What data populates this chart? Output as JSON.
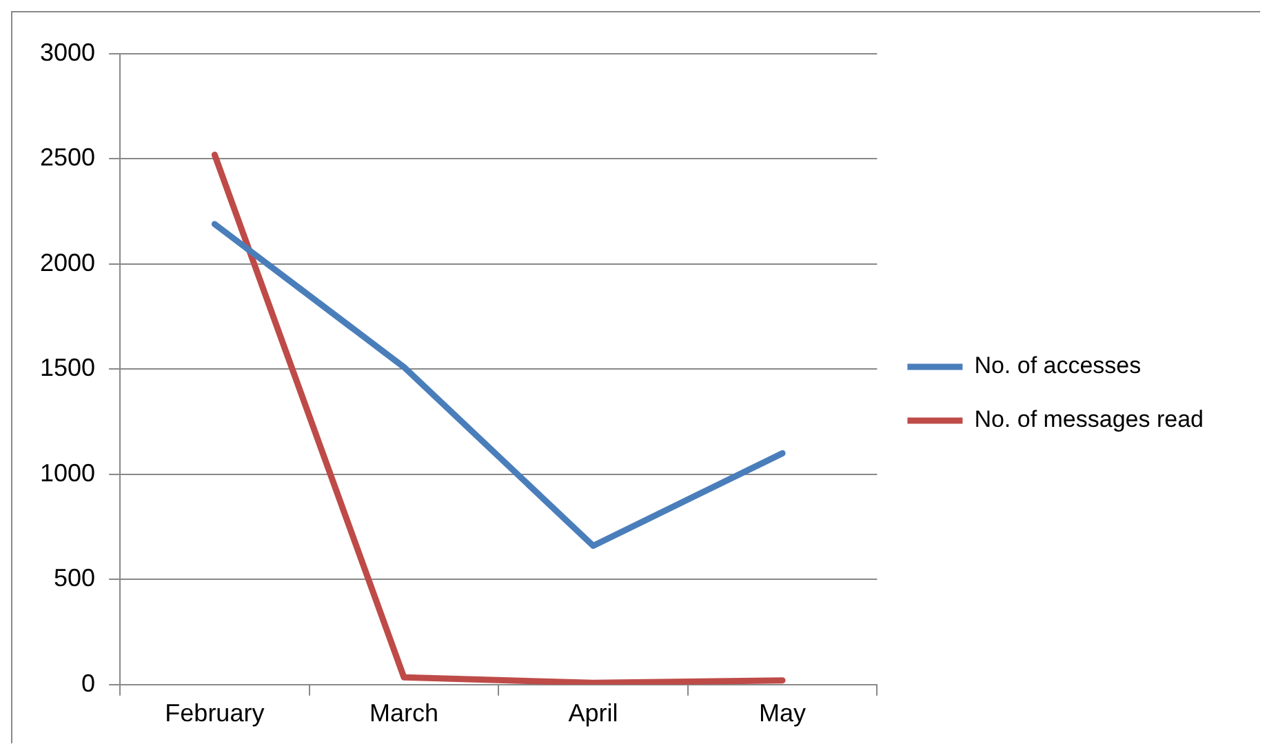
{
  "chart_data": {
    "type": "line",
    "categories": [
      "February",
      "March",
      "April",
      "May"
    ],
    "series": [
      {
        "name": "No. of accesses",
        "color": "#4a7ebb",
        "values": [
          2190,
          1510,
          660,
          1100
        ]
      },
      {
        "name": "No. of messages read",
        "color": "#be4b48",
        "values": [
          2520,
          35,
          8,
          20
        ]
      }
    ],
    "ylim": [
      0,
      3000
    ],
    "yticks": [
      0,
      500,
      1000,
      1500,
      2000,
      2500,
      3000
    ],
    "grid": "y",
    "legend": "right",
    "marker": "none",
    "line_style": "solid"
  }
}
